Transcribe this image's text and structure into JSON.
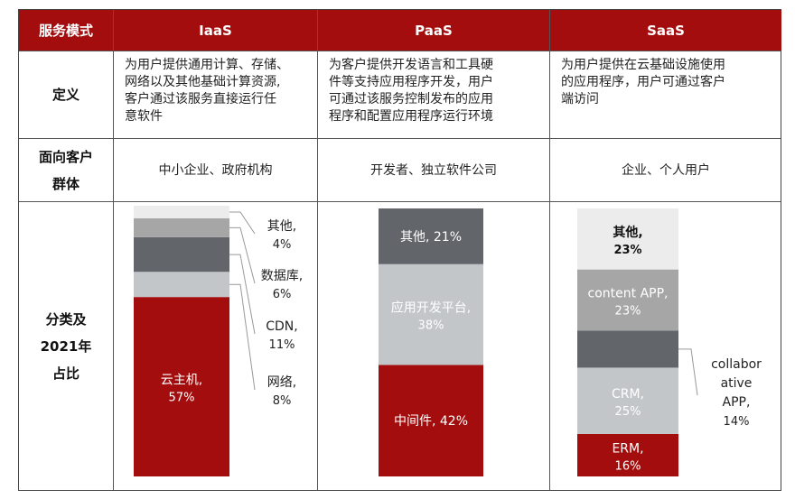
{
  "header": {
    "label": "服务模式",
    "iaas": "IaaS",
    "paas": "PaaS",
    "saas": "SaaS"
  },
  "rows": {
    "definition": "定义",
    "customer_line1": "面向客户",
    "customer_line2": "群体",
    "share_line1": "分类及",
    "share_line2": "2021年",
    "share_line3": "占比"
  },
  "definitions": {
    "iaas": [
      "为用户提供通用计算、存储、",
      "网络以及其他基础计算资源,",
      "客户通过该服务直接运行任",
      "意软件"
    ],
    "paas": [
      "为客户提供开发语言和工具硬",
      "件等支持应用程序开发，用户",
      "可通过该服务控制发布的应用",
      "程序和配置应用程序运行环境"
    ],
    "saas": [
      "为用户提供在云基础设施使用",
      "的应用程序，用户可通过客户",
      "端访问"
    ]
  },
  "customers": {
    "iaas": "中小企业、政府机构",
    "paas": "开发者、独立软件公司",
    "saas": "企业、个人用户"
  },
  "colors": {
    "header_bg": "#a30d0d",
    "dark_red": "#a30d0d",
    "dark_gray": "#626569",
    "mid_gray": "#a6a6a6",
    "light_gray": "#c3c6c9",
    "pale_gray": "#ececec"
  },
  "chart_data": [
    {
      "type": "bar",
      "stacked": true,
      "name": "IaaS",
      "segments": [
        {
          "label_line1": "云主机,",
          "label_line2": "57%",
          "value": 57,
          "color": "#a30d0d"
        },
        {
          "label_line1": "网络,",
          "label_line2": "8%",
          "value": 8,
          "color": "#c3c6c9"
        },
        {
          "label_line1": "CDN,",
          "label_line2": "11%",
          "value": 11,
          "color": "#626569"
        },
        {
          "label_line1": "数据库,",
          "label_line2": "6%",
          "value": 6,
          "color": "#a6a6a6"
        },
        {
          "label_line1": "其他,",
          "label_line2": "4%",
          "value": 4,
          "color": "#ececec"
        }
      ]
    },
    {
      "type": "bar",
      "stacked": true,
      "name": "PaaS",
      "segments": [
        {
          "label_line1": "中间件, 42%",
          "label_line2": "",
          "value": 42,
          "color": "#a30d0d"
        },
        {
          "label_line1": "应用开发平台,",
          "label_line2": "38%",
          "value": 38,
          "color": "#c3c6c9"
        },
        {
          "label_line1": "其他, 21%",
          "label_line2": "",
          "value": 21,
          "color": "#626569"
        }
      ]
    },
    {
      "type": "bar",
      "stacked": true,
      "name": "SaaS",
      "segments": [
        {
          "label_line1": "ERM,",
          "label_line2": "16%",
          "value": 16,
          "color": "#a30d0d"
        },
        {
          "label_line1": "CRM,",
          "label_line2": "25%",
          "value": 25,
          "color": "#c3c6c9"
        },
        {
          "label_line1": "collabor",
          "label_line2": "ative",
          "label_line3": "APP,",
          "label_line4": "14%",
          "value": 14,
          "color": "#626569"
        },
        {
          "label_line1": "content APP,",
          "label_line2": "23%",
          "value": 23,
          "color": "#a6a6a6"
        },
        {
          "label_line1": "其他,",
          "label_line2": "23%",
          "value": 23,
          "color": "#ececec"
        }
      ]
    }
  ]
}
